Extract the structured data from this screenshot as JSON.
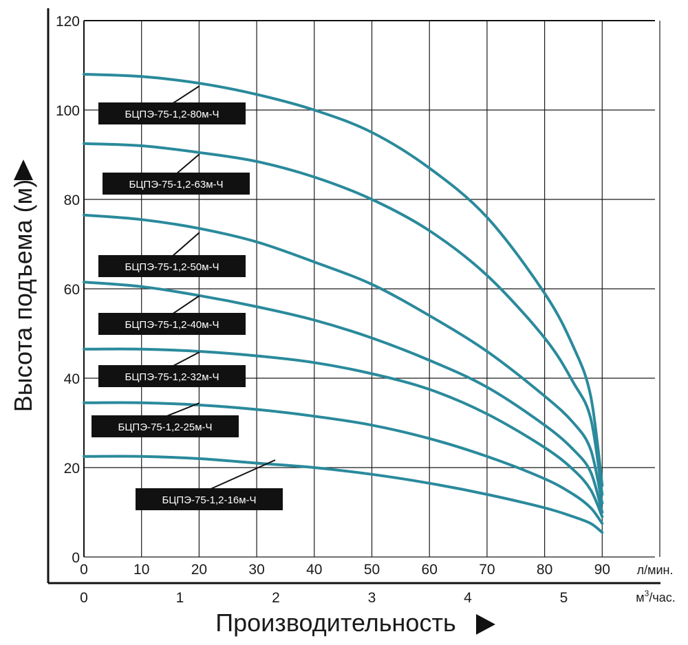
{
  "chart_data": {
    "type": "line",
    "title": "",
    "ylabel": "Высота подъема (м)",
    "xlabel": "Производительность",
    "ylim": [
      0,
      120
    ],
    "yticks": [
      "0",
      "20",
      "40",
      "60",
      "80",
      "100",
      "120"
    ],
    "xlim": [
      0,
      100
    ],
    "xticks": [
      "0",
      "10",
      "20",
      "30",
      "40",
      "50",
      "60",
      "70",
      "80",
      "90"
    ],
    "xunit": "л/мин.",
    "x2ticks": [
      "0",
      "1",
      "2",
      "3",
      "4",
      "5"
    ],
    "x2unit_base": "м",
    "x2unit_sup": "3",
    "x2unit_rest": "/час.",
    "grid": true,
    "colors": {
      "curve": "#2a8a9c",
      "label_bg": "#111111",
      "grid": "#1a1a1a"
    },
    "series": [
      {
        "name": "БЦПЭ-75-1,2-80м-Ч",
        "x": [
          0,
          10,
          20,
          30,
          40,
          50,
          60,
          70,
          80,
          85,
          88,
          90
        ],
        "y": [
          108,
          107.5,
          106,
          103.5,
          100,
          95,
          87,
          76,
          59,
          47,
          36,
          16
        ]
      },
      {
        "name": "БЦПЭ-75-1,2-63м-Ч",
        "x": [
          0,
          10,
          20,
          30,
          40,
          50,
          60,
          70,
          80,
          85,
          88,
          90
        ],
        "y": [
          92.5,
          92,
          90.5,
          88.5,
          85,
          80,
          73,
          63,
          49,
          39,
          31,
          14
        ]
      },
      {
        "name": "БЦПЭ-75-1,2-50м-Ч",
        "x": [
          0,
          10,
          20,
          30,
          40,
          50,
          60,
          70,
          80,
          85,
          88,
          90
        ],
        "y": [
          76.5,
          75.5,
          73.5,
          70.5,
          66,
          61,
          54,
          46,
          36,
          30,
          24,
          12
        ]
      },
      {
        "name": "БЦПЭ-75-1,2-40м-Ч",
        "x": [
          0,
          10,
          20,
          30,
          40,
          50,
          60,
          70,
          80,
          85,
          88,
          90
        ],
        "y": [
          61.5,
          60.5,
          58.5,
          56,
          53,
          49,
          44,
          38,
          29.5,
          24,
          19,
          10
        ]
      },
      {
        "name": "БЦПЭ-75-1,2-32м-Ч",
        "x": [
          0,
          10,
          20,
          30,
          40,
          50,
          60,
          70,
          80,
          85,
          88,
          90
        ],
        "y": [
          46.5,
          46.5,
          46,
          45,
          43.5,
          41,
          37.5,
          32,
          24.5,
          19.5,
          15,
          9
        ]
      },
      {
        "name": "БЦПЭ-75-1,2-25м-Ч",
        "x": [
          0,
          10,
          20,
          30,
          40,
          50,
          60,
          70,
          80,
          85,
          88,
          90
        ],
        "y": [
          34.5,
          34.5,
          34,
          33,
          31.5,
          29.5,
          26.5,
          22.5,
          17.5,
          14,
          11,
          7.5
        ]
      },
      {
        "name": "БЦПЭ-75-1,2-16м-Ч",
        "x": [
          0,
          10,
          20,
          30,
          40,
          50,
          60,
          70,
          80,
          85,
          88,
          90
        ],
        "y": [
          22.5,
          22.5,
          22,
          21,
          20,
          18.5,
          16.5,
          14,
          11,
          9,
          7.5,
          5.5
        ]
      }
    ]
  }
}
